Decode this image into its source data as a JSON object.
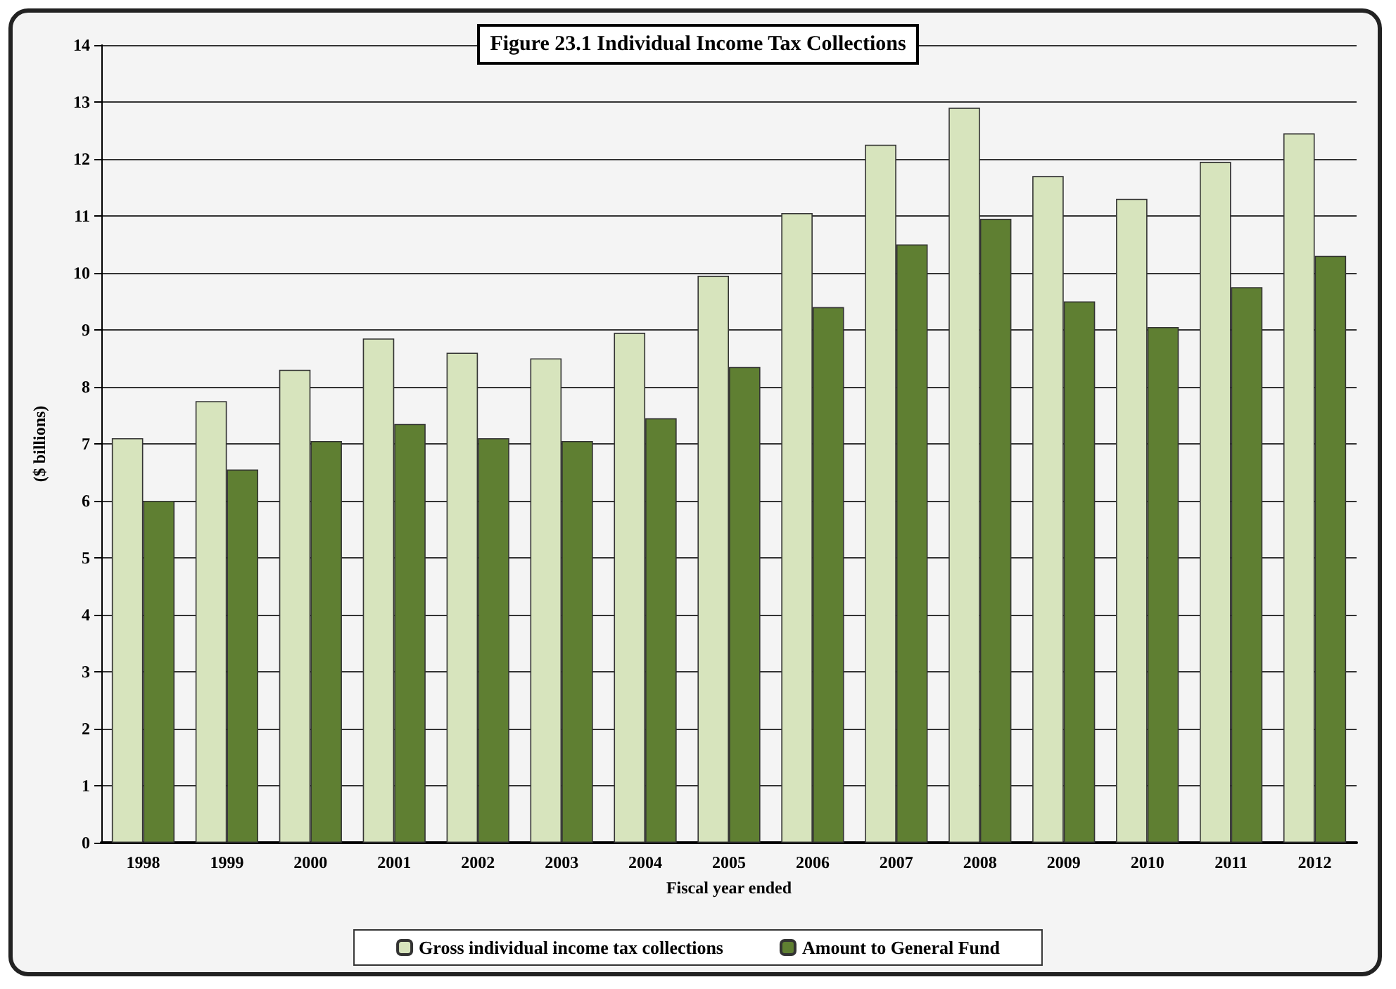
{
  "chart_data": {
    "type": "bar",
    "title": "Figure 23.1 Individual Income Tax Collections",
    "xlabel": "Fiscal year ended",
    "ylabel": "($ billions)",
    "categories": [
      "1998",
      "1999",
      "2000",
      "2001",
      "2002",
      "2003",
      "2004",
      "2005",
      "2006",
      "2007",
      "2008",
      "2009",
      "2010",
      "2011",
      "2012"
    ],
    "series": [
      {
        "name": "Gross individual income tax collections",
        "color": "#d7e4bd",
        "values": [
          7.1,
          7.75,
          8.3,
          8.85,
          8.6,
          8.5,
          8.95,
          9.95,
          11.05,
          12.25,
          12.9,
          11.7,
          11.3,
          11.95,
          12.45
        ]
      },
      {
        "name": "Amount to General Fund",
        "color": "#5f7f32",
        "values": [
          6.0,
          6.55,
          7.05,
          7.35,
          7.1,
          7.05,
          7.45,
          8.35,
          9.4,
          10.5,
          10.95,
          9.5,
          9.05,
          9.75,
          10.3
        ]
      }
    ],
    "ylim": [
      0,
      14
    ],
    "yticks": [
      0,
      1,
      2,
      3,
      4,
      5,
      6,
      7,
      8,
      9,
      10,
      11,
      12,
      13,
      14
    ],
    "grid": "y",
    "legend": "bottom"
  }
}
